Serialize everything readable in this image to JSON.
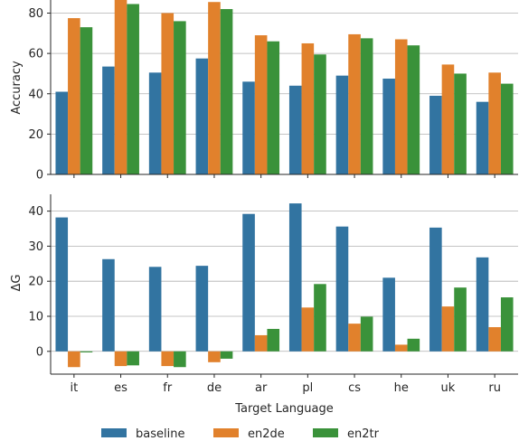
{
  "chart_data": [
    {
      "type": "bar",
      "categories": [
        "it",
        "es",
        "fr",
        "de",
        "ar",
        "pl",
        "cs",
        "he",
        "uk",
        "ru"
      ],
      "series": [
        {
          "name": "baseline",
          "values": [
            41,
            53.5,
            50.5,
            57.5,
            46,
            44,
            49,
            47.5,
            39,
            36
          ]
        },
        {
          "name": "en2de",
          "values": [
            77.5,
            86.5,
            80,
            85.5,
            69,
            65,
            69.5,
            67,
            54.5,
            50.5
          ]
        },
        {
          "name": "en2tr",
          "values": [
            73,
            84.5,
            76,
            82,
            66,
            59.5,
            67.5,
            64,
            50,
            45
          ]
        }
      ],
      "ylabel": "Accuracy",
      "xlabel": "",
      "ylim": [
        0,
        86.5
      ],
      "yticks": [
        0,
        20,
        40,
        60,
        80
      ],
      "grid": "horizontal"
    },
    {
      "type": "bar",
      "categories": [
        "it",
        "es",
        "fr",
        "de",
        "ar",
        "pl",
        "cs",
        "he",
        "uk",
        "ru"
      ],
      "series": [
        {
          "name": "baseline",
          "values": [
            38.2,
            26.3,
            24.1,
            24.4,
            39.2,
            42.2,
            35.6,
            21,
            35.3,
            26.8
          ]
        },
        {
          "name": "en2de",
          "values": [
            -4.5,
            -4.2,
            -4.2,
            -3.1,
            4.6,
            12.5,
            7.9,
            1.9,
            12.8,
            6.9
          ]
        },
        {
          "name": "en2tr",
          "values": [
            -0.3,
            -4.0,
            -4.5,
            -2.1,
            6.4,
            19.2,
            9.9,
            3.6,
            18.2,
            15.4
          ]
        }
      ],
      "ylabel": "ΔG",
      "xlabel": "Target Language",
      "ylim": [
        -6.5,
        44.8
      ],
      "yticks": [
        0,
        10,
        20,
        30,
        40
      ],
      "grid": "horizontal"
    }
  ],
  "legend": {
    "placement": "bottom-center",
    "items": [
      "baseline",
      "en2de",
      "en2tr"
    ]
  },
  "colors": {
    "baseline": "#3274a1",
    "en2de": "#e1812c",
    "en2tr": "#3a923a",
    "grid": "#b0b0b0",
    "axis": "#262626"
  }
}
